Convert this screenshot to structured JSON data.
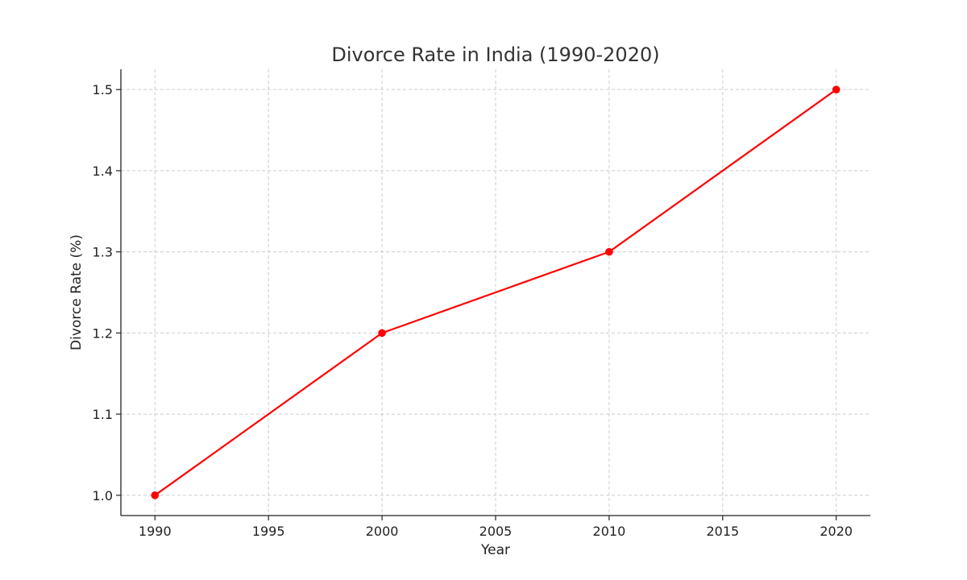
{
  "chart_data": {
    "type": "line",
    "title": "Divorce Rate in India (1990-2020)",
    "xlabel": "Year",
    "ylabel": "Divorce Rate (%)",
    "xlim": [
      1988.5,
      2021.5
    ],
    "ylim": [
      0.975,
      1.525
    ],
    "xticks": [
      "1990",
      "1995",
      "2000",
      "2005",
      "2010",
      "2015",
      "2020"
    ],
    "yticks": [
      "1.0",
      "1.1",
      "1.2",
      "1.3",
      "1.4",
      "1.5"
    ],
    "grid": true,
    "series": [
      {
        "color": "#ff0000",
        "x": [
          1990,
          2000,
          2010,
          2020
        ],
        "y": [
          1.0,
          1.2,
          1.3,
          1.5
        ]
      }
    ]
  }
}
